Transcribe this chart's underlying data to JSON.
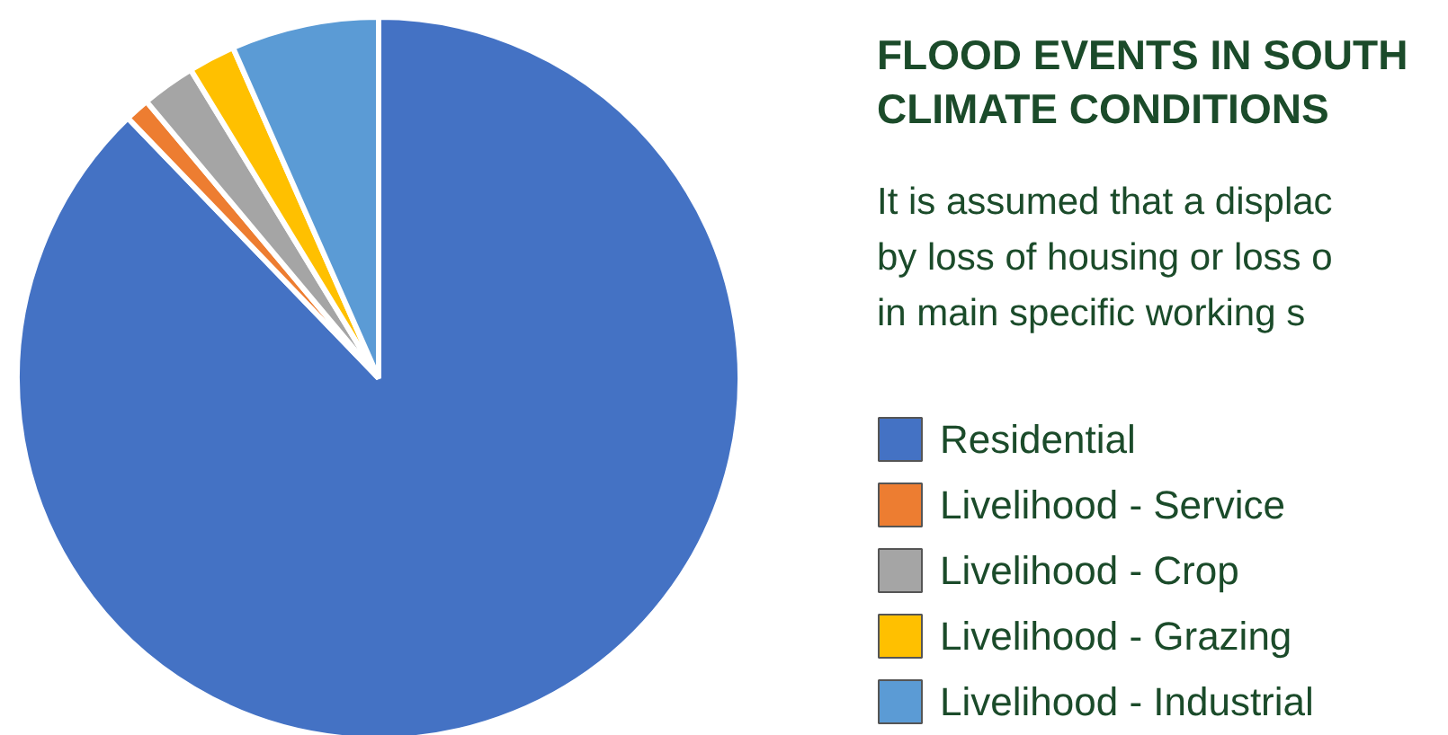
{
  "chart_data": {
    "type": "pie",
    "title": "FLOOD EVENTS IN SOUTH\nCLIMATE CONDITIONS",
    "subtitle": "It is assumed that a displac\nby loss of housing or loss o\nin main specific working s",
    "categories": [
      "Residential",
      "Livelihood - Service",
      "Livelihood - Crop",
      "Livelihood - Grazing",
      "Livelihood - Industrial"
    ],
    "values": [
      87.8,
      1.1,
      2.4,
      2.1,
      6.6
    ],
    "colors": [
      "#4472c4",
      "#ed7d31",
      "#a5a5a5",
      "#ffc000",
      "#5b9bd5"
    ],
    "legend": "right"
  }
}
